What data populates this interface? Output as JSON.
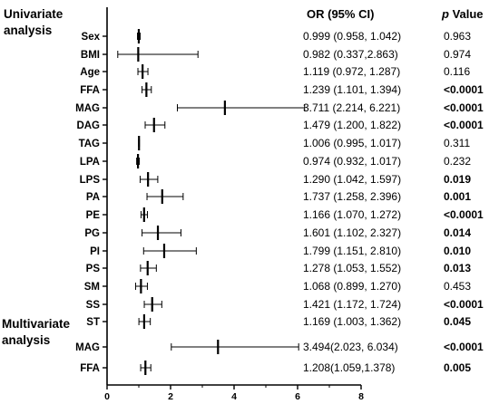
{
  "chart_data": {
    "type": "forest",
    "headers": {
      "or": "OR (95% CI)",
      "p_italic": "p",
      "p_rest": " Value"
    },
    "sections": [
      {
        "title_lines": [
          "Univariate",
          "analysis"
        ],
        "rows": [
          {
            "label": "Sex",
            "or": 0.999,
            "lo": 0.958,
            "hi": 1.042,
            "or_text": "0.999 (0.958, 1.042)",
            "p_text": "0.963",
            "p_bold": false
          },
          {
            "label": "BMI",
            "or": 0.982,
            "lo": 0.337,
            "hi": 2.863,
            "or_text": "0.982 (0.337,2.863)",
            "p_text": "0.974",
            "p_bold": false
          },
          {
            "label": "Age",
            "or": 1.119,
            "lo": 0.972,
            "hi": 1.287,
            "or_text": "1.119 (0.972, 1.287)",
            "p_text": "0.116",
            "p_bold": false
          },
          {
            "label": "FFA",
            "or": 1.239,
            "lo": 1.101,
            "hi": 1.394,
            "or_text": "1.239 (1.101, 1.394)",
            "p_text": "<0.0001",
            "p_bold": true
          },
          {
            "label": "MAG",
            "or": 3.711,
            "lo": 2.214,
            "hi": 6.221,
            "or_text": "3.711 (2.214, 6.221)",
            "p_text": "<0.0001",
            "p_bold": true
          },
          {
            "label": "DAG",
            "or": 1.479,
            "lo": 1.2,
            "hi": 1.822,
            "or_text": "1.479 (1.200, 1.822)",
            "p_text": "<0.0001",
            "p_bold": true
          },
          {
            "label": "TAG",
            "or": 1.006,
            "lo": 0.995,
            "hi": 1.017,
            "or_text": "1.006 (0.995, 1.017)",
            "p_text": "0.311",
            "p_bold": false
          },
          {
            "label": "LPA",
            "or": 0.974,
            "lo": 0.932,
            "hi": 1.017,
            "or_text": "0.974 (0.932, 1.017)",
            "p_text": "0.232",
            "p_bold": false
          },
          {
            "label": "LPS",
            "or": 1.29,
            "lo": 1.042,
            "hi": 1.597,
            "or_text": "1.290 (1.042, 1.597)",
            "p_text": "0.019",
            "p_bold": true
          },
          {
            "label": "PA",
            "or": 1.737,
            "lo": 1.258,
            "hi": 2.396,
            "or_text": "1.737 (1.258, 2.396)",
            "p_text": "0.001",
            "p_bold": true
          },
          {
            "label": "PE",
            "or": 1.166,
            "lo": 1.07,
            "hi": 1.272,
            "or_text": "1.166 (1.070, 1.272)",
            "p_text": "<0.0001",
            "p_bold": true
          },
          {
            "label": "PG",
            "or": 1.601,
            "lo": 1.102,
            "hi": 2.327,
            "or_text": "1.601 (1.102, 2.327)",
            "p_text": "0.014",
            "p_bold": true
          },
          {
            "label": "PI",
            "or": 1.799,
            "lo": 1.151,
            "hi": 2.81,
            "or_text": "1.799 (1.151, 2.810)",
            "p_text": "0.010",
            "p_bold": true
          },
          {
            "label": "PS",
            "or": 1.278,
            "lo": 1.053,
            "hi": 1.552,
            "or_text": "1.278 (1.053, 1.552)",
            "p_text": "0.013",
            "p_bold": true
          },
          {
            "label": "SM",
            "or": 1.068,
            "lo": 0.899,
            "hi": 1.27,
            "or_text": "1.068 (0.899, 1.270)",
            "p_text": "0.453",
            "p_bold": false
          },
          {
            "label": "SS",
            "or": 1.421,
            "lo": 1.172,
            "hi": 1.724,
            "or_text": "1.421 (1.172, 1.724)",
            "p_text": "<0.0001",
            "p_bold": true
          },
          {
            "label": "ST",
            "or": 1.169,
            "lo": 1.003,
            "hi": 1.362,
            "or_text": "1.169 (1.003, 1.362)",
            "p_text": "0.045",
            "p_bold": true
          }
        ]
      },
      {
        "title_lines": [
          "Multivariate",
          "analysis"
        ],
        "rows": [
          {
            "label": "MAG",
            "or": 3.494,
            "lo": 2.023,
            "hi": 6.034,
            "or_text": "3.494(2.023, 6.034)",
            "p_text": "<0.0001",
            "p_bold": true
          },
          {
            "label": "FFA",
            "or": 1.208,
            "lo": 1.059,
            "hi": 1.378,
            "or_text": "1.208(1.059,1.378)",
            "p_text": "0.005",
            "p_bold": true
          }
        ]
      }
    ],
    "x_ticks": [
      0,
      2,
      4,
      6,
      8
    ],
    "xlim": [
      0,
      8
    ],
    "reference_line": 1,
    "grid": false
  }
}
